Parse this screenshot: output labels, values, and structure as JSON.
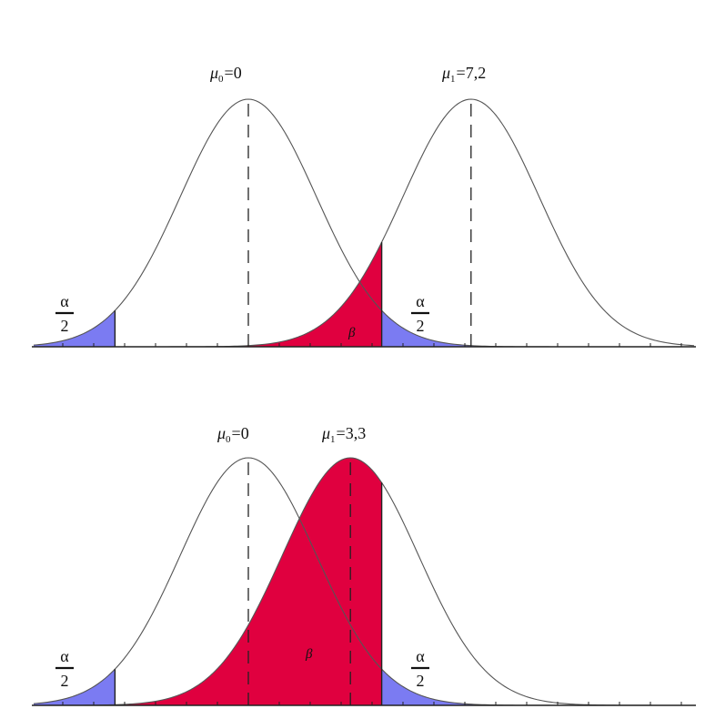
{
  "panels": [
    {
      "mu0": {
        "symbol": "μ",
        "sub": "0",
        "eq": "=",
        "value": "0"
      },
      "mu1": {
        "symbol": "μ",
        "sub": "1",
        "eq": "=",
        "value": "7,2"
      },
      "beta": "β",
      "alpha_left": {
        "num": "α",
        "den": "2"
      },
      "alpha_right": {
        "num": "α",
        "den": "2"
      }
    },
    {
      "mu0": {
        "symbol": "μ",
        "sub": "0",
        "eq": "=",
        "value": "0"
      },
      "mu1": {
        "symbol": "μ",
        "sub": "1",
        "eq": "=",
        "value": "3,3"
      },
      "beta": "β",
      "alpha_left": {
        "num": "α",
        "den": "2"
      },
      "alpha_right": {
        "num": "α",
        "den": "2"
      }
    }
  ],
  "colors": {
    "alpha_region": "#7b7bf2",
    "beta_region": "#e0003f",
    "curve": "#555555",
    "axis": "#222222"
  }
}
